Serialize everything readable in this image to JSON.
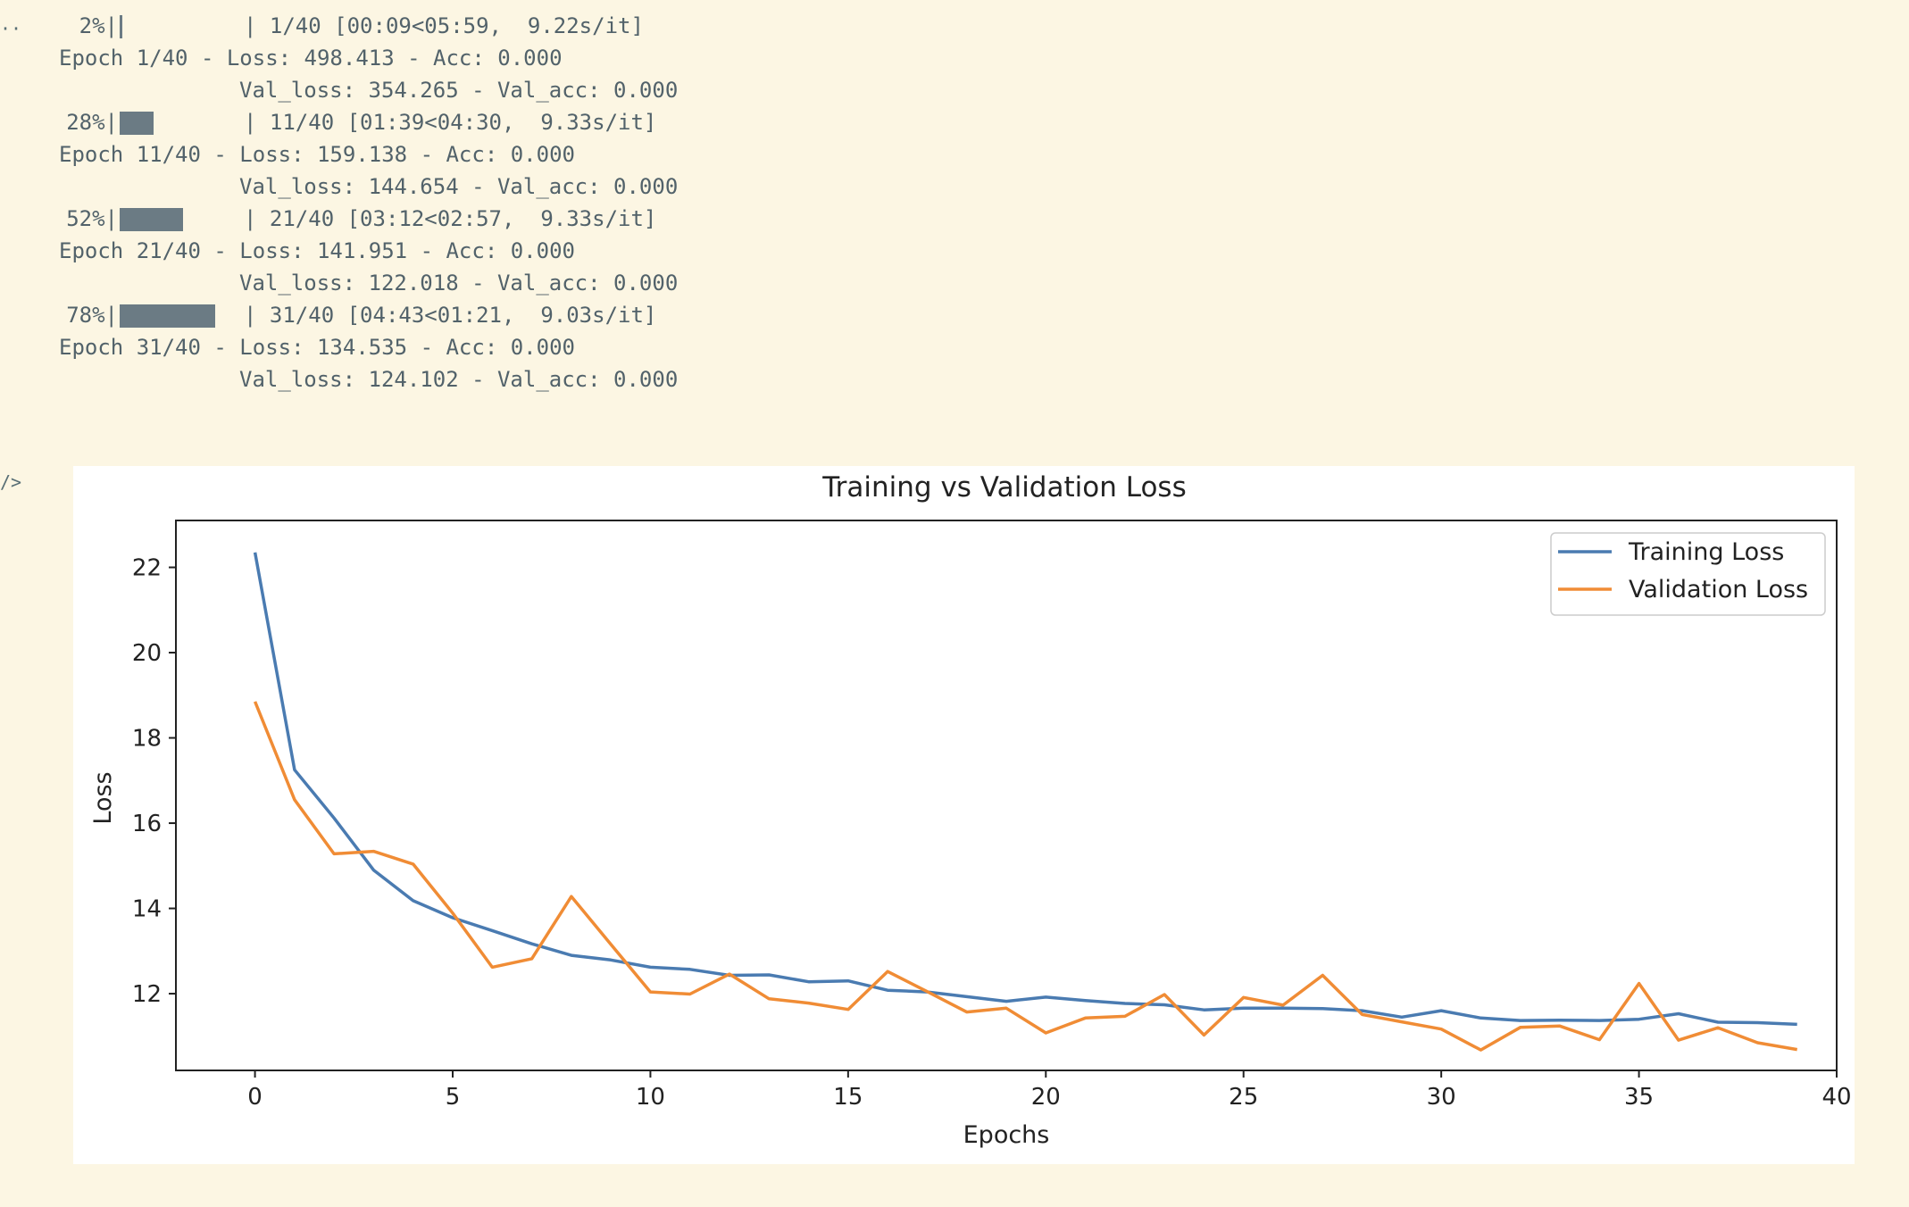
{
  "output_prompt_top": "··",
  "output_prompt_plot": "/>",
  "progress_lines": [
    {
      "percent": "2%|",
      "fill": 0.025,
      "suffix": "| 1/40 [00:09<05:59,  9.22s/it]",
      "epoch_line": "Epoch 1/40 - Loss: 498.413 - Acc: 0.000",
      "val_line": "Val_loss: 354.265 - Val_acc: 0.000"
    },
    {
      "percent": "28%|",
      "fill": 0.28,
      "suffix": "| 11/40 [01:39<04:30,  9.33s/it]",
      "epoch_line": "Epoch 11/40 - Loss: 159.138 - Acc: 0.000",
      "val_line": "Val_loss: 144.654 - Val_acc: 0.000"
    },
    {
      "percent": "52%|",
      "fill": 0.52,
      "suffix": "| 21/40 [03:12<02:57,  9.33s/it]",
      "epoch_line": "Epoch 21/40 - Loss: 141.951 - Acc: 0.000",
      "val_line": "Val_loss: 122.018 - Val_acc: 0.000"
    },
    {
      "percent": "78%|",
      "fill": 0.78,
      "suffix": "| 31/40 [04:43<01:21,  9.03s/it]",
      "epoch_line": "Epoch 31/40 - Loss: 134.535 - Acc: 0.000",
      "val_line": "Val_loss: 124.102 - Val_acc: 0.000"
    }
  ],
  "colors": {
    "training": "#4a7bb1",
    "validation": "#f08c35",
    "progress_bar": "#6b7b84",
    "background": "#fcf6e3"
  },
  "chart_data": {
    "type": "line",
    "title": "Training vs Validation Loss",
    "xlabel": "Epochs",
    "ylabel": "Loss",
    "xlim": [
      -2,
      40
    ],
    "ylim": [
      10.2,
      23.1
    ],
    "xticks": [
      0,
      5,
      10,
      15,
      20,
      25,
      30,
      35,
      40
    ],
    "yticks": [
      12,
      14,
      16,
      18,
      20,
      22
    ],
    "grid": false,
    "legend_position": "top-right",
    "x": [
      0,
      1,
      2,
      3,
      4,
      5,
      6,
      7,
      8,
      9,
      10,
      11,
      12,
      13,
      14,
      15,
      16,
      17,
      18,
      19,
      20,
      21,
      22,
      23,
      24,
      25,
      26,
      27,
      28,
      29,
      30,
      31,
      32,
      33,
      34,
      35,
      36,
      37,
      38,
      39
    ],
    "series": [
      {
        "name": "Training Loss",
        "values": [
          22.35,
          17.25,
          16.12,
          14.9,
          14.18,
          13.78,
          13.48,
          13.17,
          12.9,
          12.79,
          12.62,
          12.57,
          12.43,
          12.44,
          12.28,
          12.3,
          12.08,
          12.04,
          11.93,
          11.82,
          11.92,
          11.84,
          11.77,
          11.74,
          11.62,
          11.66,
          11.66,
          11.65,
          11.6,
          11.45,
          11.6,
          11.43,
          11.37,
          11.38,
          11.37,
          11.4,
          11.53,
          11.33,
          11.32,
          11.28
        ]
      },
      {
        "name": "Validation Loss",
        "values": [
          18.85,
          16.55,
          15.28,
          15.34,
          15.04,
          13.89,
          12.62,
          12.82,
          14.28,
          13.16,
          12.04,
          11.99,
          12.46,
          11.88,
          11.78,
          11.63,
          12.52,
          12.05,
          11.57,
          11.66,
          11.08,
          11.43,
          11.47,
          11.98,
          11.03,
          11.91,
          11.73,
          12.43,
          11.51,
          11.34,
          11.17,
          10.68,
          11.21,
          11.24,
          10.92,
          12.24,
          10.91,
          11.2,
          10.85,
          10.69
        ]
      }
    ]
  }
}
